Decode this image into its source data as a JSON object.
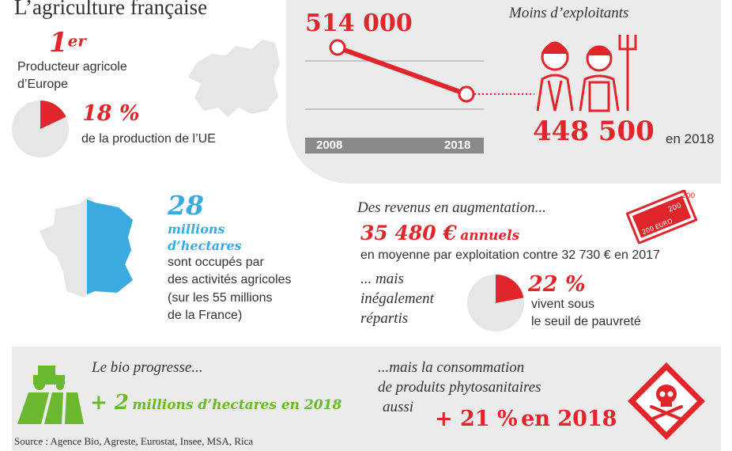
{
  "title": "L’agriculture française",
  "rank": {
    "number": "1",
    "suffix": "er",
    "text_line1": "Producteur agricole",
    "text_line2": "d’Europe"
  },
  "eu_share": {
    "value": "18 %",
    "text": "de la production de l’UE",
    "fraction": 0.18
  },
  "farmers": {
    "heading": "Moins d’exploitants",
    "value_2008": "514 000",
    "value_2018": "448 500",
    "suffix_2018": "en 2018",
    "year_start": "2008",
    "year_end": "2018"
  },
  "chart_data": {
    "type": "line",
    "x": [
      "2008",
      "2018"
    ],
    "series": [
      {
        "values": [
          514000,
          448500
        ]
      }
    ]
  },
  "hectares": {
    "value": "28",
    "unit_line1": "millions",
    "unit_line2": "d’hectares",
    "text_line1": "sont occupés par",
    "text_line2": "des activités agricoles",
    "text_line3": "(sur les 55 millions",
    "text_line4": "de la France)"
  },
  "income": {
    "heading": "Des revenus en augmentation...",
    "value": "35 480 €",
    "value_suffix": "annuels",
    "text": "en moyenne par exploitation contre 32 730 € en 2017",
    "but_line1": "... mais",
    "but_line2": "inégalement",
    "but_line3": "répartis",
    "poverty_value": "22 %",
    "poverty_fraction": 0.22,
    "poverty_line1": "vivent sous",
    "poverty_line2": "le seuil de pauvreté",
    "bill_label_a": "200",
    "bill_label_b": "200",
    "bill_label_c": "200 EURO"
  },
  "organic": {
    "heading": "Le bio progresse...",
    "value": "+ 2",
    "value_text": "millions d’hectares en 2018"
  },
  "pesticides": {
    "line1": "...mais la consommation",
    "line2": "de produits phytosanitaires",
    "line3": "aussi",
    "value": "+ 21 %",
    "value_suffix": "en 2018"
  },
  "source": "Source : Agence Bio, Agreste, Eurostat, Insee, MSA, Rica",
  "colors": {
    "red": "#e0262b",
    "green": "#6ab82e",
    "blue": "#39abe0",
    "gray": "#ebebeb"
  }
}
